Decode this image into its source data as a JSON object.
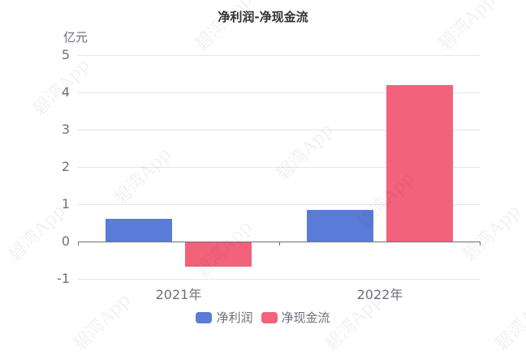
{
  "chart_data": {
    "type": "bar",
    "title": "净利润-净现金流",
    "ylabel": "亿元",
    "xlabel": "",
    "categories": [
      "2021年",
      "2022年"
    ],
    "series": [
      {
        "name": "净利润",
        "color": "#5b7bd8",
        "values": [
          0.61,
          0.85
        ]
      },
      {
        "name": "净现金流",
        "color": "#f2627b",
        "values": [
          -0.67,
          4.2
        ]
      }
    ],
    "ylim": [
      -1,
      5
    ],
    "yticks": [
      "5",
      "4",
      "3",
      "2",
      "1",
      "0",
      "-1"
    ],
    "grid": true,
    "legend_position": "bottom"
  },
  "watermark": "碧湾App"
}
